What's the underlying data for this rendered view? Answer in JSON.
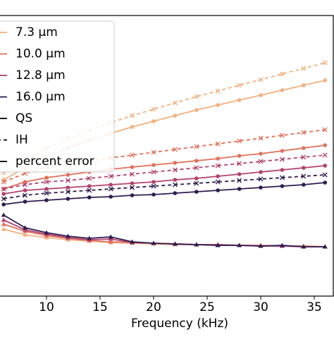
{
  "chart_data": {
    "type": "line",
    "x_label": "Frequency (kHz)",
    "x": [
      6,
      8,
      10,
      12,
      14,
      16,
      18,
      20,
      22,
      24,
      26,
      28,
      30,
      32,
      34,
      36
    ],
    "xlim": [
      5.66,
      36.84
    ],
    "xticks": [
      10,
      15,
      20,
      25,
      30,
      35
    ],
    "ylim": [
      0,
      398
    ],
    "series": [
      {
        "name": "7.3 μm",
        "color": "#f3b07f",
        "qs": [
          165,
          182,
          198,
          210,
          221,
          231,
          240,
          248,
          256,
          264,
          271,
          278,
          285,
          292,
          299,
          306
        ],
        "ih": [
          175,
          194,
          210,
          223,
          235,
          246,
          256,
          265,
          274,
          283,
          291,
          299,
          307,
          315,
          323,
          331
        ],
        "error": [
          95,
          87,
          83,
          80,
          78,
          76,
          75,
          74,
          73,
          73,
          72,
          72,
          71,
          71,
          71,
          70
        ]
      },
      {
        "name": "10.0 μm",
        "color": "#e2705b",
        "qs": [
          152,
          162,
          168,
          172,
          176,
          180,
          183,
          186,
          189,
          192,
          195,
          199,
          202,
          206,
          210,
          214
        ],
        "ih": [
          162,
          174,
          183,
          187,
          192,
          196,
          200,
          204,
          208,
          212,
          216,
          220,
          224,
          228,
          232,
          236
        ],
        "error": [
          102,
          92,
          86,
          82,
          79,
          77,
          76,
          75,
          74,
          73,
          73,
          72,
          72,
          71,
          71,
          70
        ]
      },
      {
        "name": "12.8 μm",
        "color": "#b3416e",
        "qs": [
          145,
          150,
          152,
          154,
          156,
          158,
          160,
          162,
          165,
          167,
          170,
          173,
          176,
          179,
          182,
          185
        ],
        "ih": [
          152,
          158,
          162,
          164,
          167,
          170,
          173,
          176,
          179,
          182,
          185,
          188,
          191,
          194,
          197,
          200
        ],
        "error": [
          108,
          94,
          88,
          83,
          80,
          81,
          76,
          75,
          74,
          73,
          73,
          72,
          71,
          71,
          70,
          70
        ]
      },
      {
        "name": "16.0 μm",
        "color": "#2f1b50",
        "qs": [
          130,
          134,
          136,
          138,
          140,
          141,
          143,
          144,
          146,
          148,
          150,
          152,
          154,
          156,
          158,
          161
        ],
        "ih": [
          138,
          143,
          146,
          148,
          150,
          152,
          154,
          156,
          158,
          160,
          162,
          164,
          166,
          168,
          170,
          172
        ],
        "error": [
          115,
          97,
          90,
          85,
          82,
          84,
          77,
          75,
          74,
          73,
          72,
          72,
          71,
          72,
          70,
          70
        ]
      }
    ],
    "styles": [
      {
        "name": "QS",
        "dash": "none",
        "marker": "circle"
      },
      {
        "name": "IH",
        "dash": "5,4",
        "marker": "cross"
      },
      {
        "name": "percent error",
        "dash": "none",
        "marker": "triangle"
      }
    ]
  }
}
